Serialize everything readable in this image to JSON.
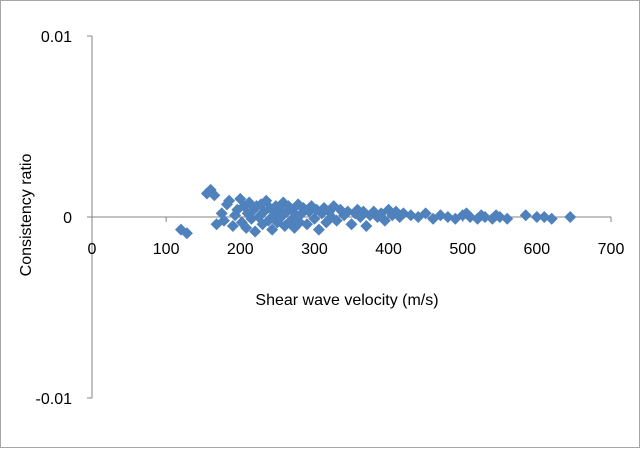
{
  "chart_data": {
    "type": "scatter",
    "title": "",
    "xlabel": "Shear wave velocity (m/s)",
    "ylabel": "Consistency ratio",
    "xlim": [
      0,
      700
    ],
    "ylim": [
      -0.01,
      0.01
    ],
    "x_ticks": [
      0,
      100,
      200,
      300,
      400,
      500,
      600,
      700
    ],
    "y_ticks": [
      -0.01,
      0,
      0.01
    ],
    "x_tick_labels": [
      "0",
      "100",
      "200",
      "300",
      "400",
      "500",
      "600",
      "700"
    ],
    "y_tick_labels": [
      "-0.01",
      "0",
      "0.01"
    ],
    "grid": false,
    "legend": "none",
    "marker": "diamond",
    "marker_color": "#4f81bd",
    "series": [
      {
        "points": [
          [
            120,
            -0.0007
          ],
          [
            128,
            -0.0009
          ],
          [
            155,
            0.0013
          ],
          [
            160,
            0.0015
          ],
          [
            165,
            0.0012
          ],
          [
            168,
            -0.0004
          ],
          [
            175,
            0.0002
          ],
          [
            178,
            -0.0002
          ],
          [
            182,
            0.0007
          ],
          [
            185,
            0.0009
          ],
          [
            190,
            -0.0005
          ],
          [
            193,
            0.0001
          ],
          [
            196,
            0.0004
          ],
          [
            200,
            0.001
          ],
          [
            202,
            -0.0003
          ],
          [
            205,
            0.0006
          ],
          [
            208,
            -0.0006
          ],
          [
            210,
            0.0002
          ],
          [
            212,
            0.0008
          ],
          [
            215,
            -0.0001
          ],
          [
            218,
            0.0004
          ],
          [
            220,
            -0.0008
          ],
          [
            222,
            0.0006
          ],
          [
            225,
            0.0
          ],
          [
            228,
            0.0007
          ],
          [
            230,
            -0.0004
          ],
          [
            232,
            0.0003
          ],
          [
            235,
            0.0009
          ],
          [
            238,
            -0.0002
          ],
          [
            240,
            0.0005
          ],
          [
            243,
            -0.0007
          ],
          [
            245,
            0.0001
          ],
          [
            248,
            0.0006
          ],
          [
            250,
            -0.0003
          ],
          [
            253,
            0.0004
          ],
          [
            255,
            0.0
          ],
          [
            258,
            0.0008
          ],
          [
            260,
            -0.0005
          ],
          [
            263,
            0.0003
          ],
          [
            265,
            0.0006
          ],
          [
            268,
            -0.0002
          ],
          [
            270,
            0.0004
          ],
          [
            273,
            -0.0006
          ],
          [
            275,
            0.0001
          ],
          [
            278,
            0.0007
          ],
          [
            280,
            -0.0003
          ],
          [
            283,
            0.0002
          ],
          [
            285,
            0.0005
          ],
          [
            290,
            -0.0004
          ],
          [
            293,
            0.0003
          ],
          [
            296,
            0.0006
          ],
          [
            300,
            -0.0001
          ],
          [
            303,
            0.0004
          ],
          [
            306,
            -0.0007
          ],
          [
            310,
            0.0002
          ],
          [
            313,
            0.0005
          ],
          [
            316,
            -0.0003
          ],
          [
            320,
            0.0003
          ],
          [
            323,
            0.0
          ],
          [
            326,
            0.0006
          ],
          [
            330,
            -0.0002
          ],
          [
            335,
            0.0004
          ],
          [
            340,
            0.0001
          ],
          [
            345,
            0.0003
          ],
          [
            350,
            -0.0004
          ],
          [
            355,
            0.0002
          ],
          [
            358,
            0.0004
          ],
          [
            362,
            0.0
          ],
          [
            366,
            0.0003
          ],
          [
            370,
            -0.0005
          ],
          [
            375,
            0.0001
          ],
          [
            380,
            0.0003
          ],
          [
            385,
            0.0
          ],
          [
            390,
            0.0002
          ],
          [
            395,
            -0.0002
          ],
          [
            400,
            0.0004
          ],
          [
            405,
            0.0001
          ],
          [
            410,
            0.0003
          ],
          [
            415,
            0.0
          ],
          [
            420,
            0.0002
          ],
          [
            430,
            0.0001
          ],
          [
            440,
            0.0
          ],
          [
            450,
            0.0002
          ],
          [
            460,
            -0.0001
          ],
          [
            470,
            0.0001
          ],
          [
            480,
            0.0
          ],
          [
            490,
            -0.0001
          ],
          [
            500,
            0.0001
          ],
          [
            505,
            0.0002
          ],
          [
            510,
            0.0
          ],
          [
            520,
            -0.0001
          ],
          [
            525,
            0.0001
          ],
          [
            530,
            0.0
          ],
          [
            540,
            -0.0001
          ],
          [
            545,
            0.0001
          ],
          [
            550,
            0.0
          ],
          [
            560,
            -0.0001
          ],
          [
            585,
            0.0001
          ],
          [
            600,
            0.0
          ],
          [
            610,
            0.0
          ],
          [
            620,
            -0.0001
          ],
          [
            645,
            0.0
          ]
        ]
      }
    ]
  }
}
